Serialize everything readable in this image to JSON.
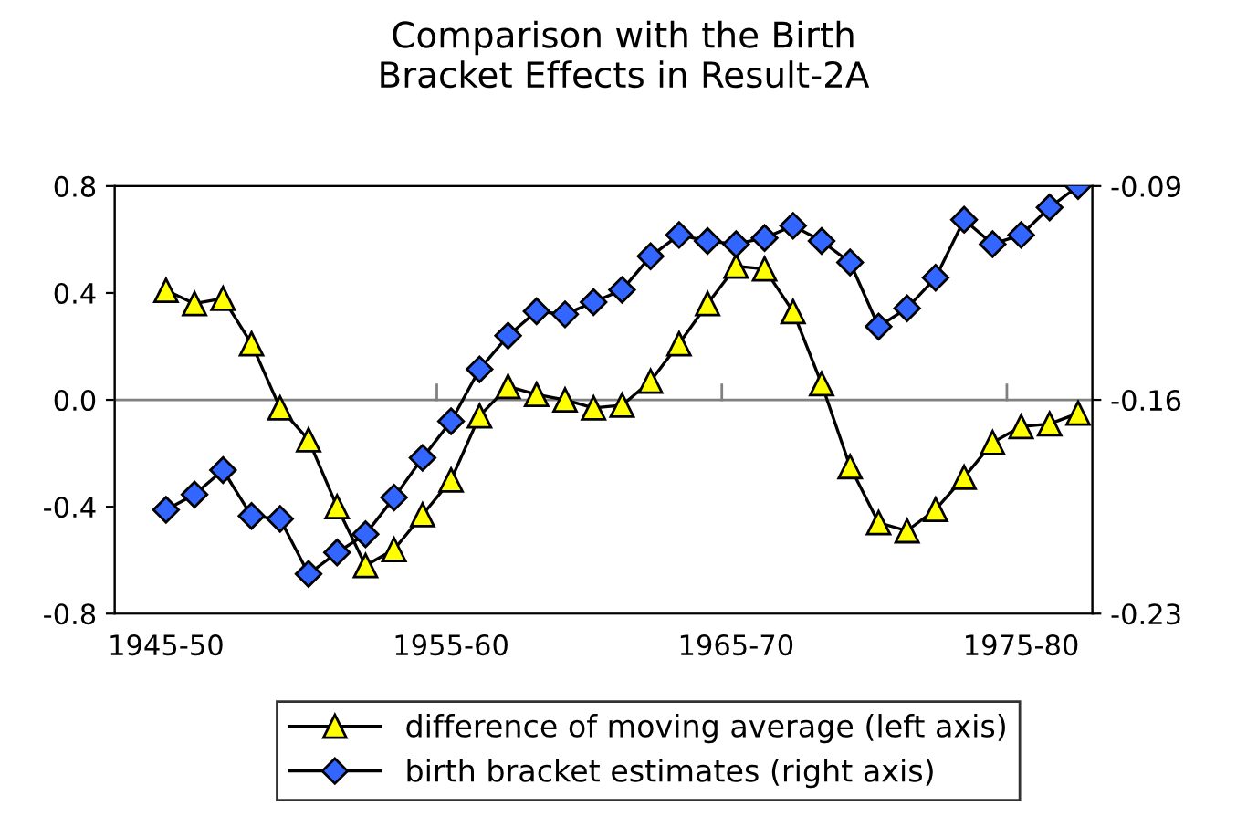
{
  "chart_data": {
    "type": "line",
    "title": "Comparison with the Birth\nBracket Effects in Result-2A",
    "categories": [
      "1945-50",
      null,
      null,
      null,
      null,
      null,
      null,
      null,
      null,
      null,
      "1955-60",
      null,
      null,
      null,
      null,
      null,
      null,
      null,
      null,
      null,
      "1965-70",
      null,
      null,
      null,
      null,
      null,
      null,
      null,
      null,
      null,
      "1975-80",
      null,
      null
    ],
    "series": [
      {
        "name": "difference of moving average (left axis)",
        "color": "#ffff00",
        "marker": "triangle",
        "values": [
          0.41,
          0.36,
          0.38,
          0.21,
          -0.03,
          -0.15,
          -0.4,
          -0.62,
          -0.56,
          -0.43,
          -0.3,
          -0.06,
          0.05,
          0.02,
          0.0,
          -0.03,
          -0.02,
          0.07,
          0.21,
          0.36,
          0.5,
          0.49,
          0.33,
          0.06,
          -0.25,
          -0.46,
          -0.49,
          -0.41,
          -0.29,
          -0.16,
          -0.1,
          -0.09,
          -0.05
        ]
      },
      {
        "name": "birth bracket estimates (right axis)",
        "color": "#3366ff",
        "marker": "diamond",
        "axis": "y2",
        "values": [
          -0.196,
          -0.191,
          -0.183,
          -0.198,
          -0.199,
          -0.217,
          -0.21,
          -0.204,
          -0.192,
          -0.179,
          -0.167,
          -0.15,
          -0.139,
          -0.131,
          -0.132,
          -0.128,
          -0.124,
          -0.113,
          -0.106,
          -0.108,
          -0.109,
          -0.107,
          -0.103,
          -0.108,
          -0.115,
          -0.136,
          -0.13,
          -0.12,
          -0.101,
          -0.109,
          -0.106,
          -0.097,
          -0.09
        ]
      }
    ],
    "ylim": [
      -0.8,
      0.8
    ],
    "yticks": [
      {
        "value": -0.8,
        "label": "-0.8"
      },
      {
        "value": -0.4,
        "label": "-0.4"
      },
      {
        "value": 0,
        "label": "0.0"
      },
      0.4,
      0.8
    ],
    "y2lim": [
      -0.23,
      -0.09
    ],
    "y2ticks": [
      -0.23,
      -0.16,
      -0.09
    ],
    "ref_lines": [
      {
        "axis": "y",
        "value": 0,
        "color": "#808080"
      }
    ],
    "grid": false,
    "legend": "bottom",
    "line_style": "solid"
  }
}
